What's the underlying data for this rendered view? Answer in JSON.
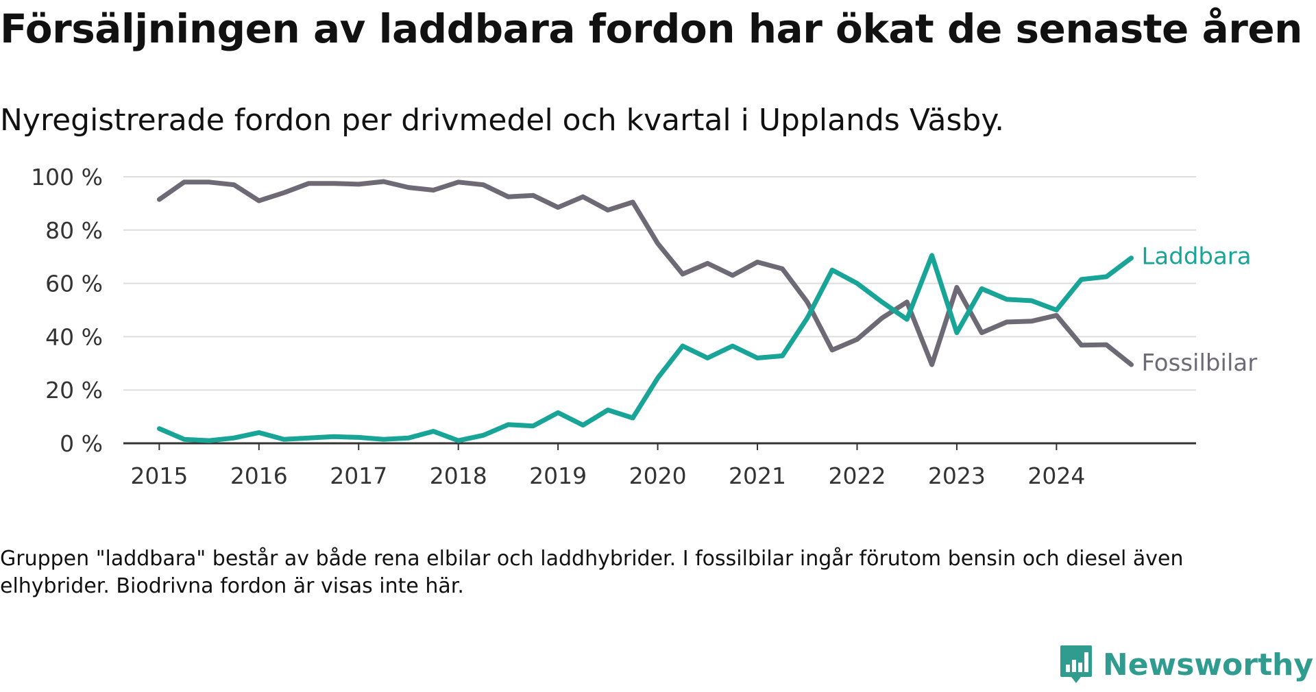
{
  "title": "Försäljningen av laddbara fordon har ökat de senaste åren",
  "subtitle": "Nyregistrerade fordon per drivmedel och kvartal i Upplands Väsby.",
  "note": "Gruppen \"laddbara\" består av både rena elbilar och laddhybrider. I fossilbilar ingår förutom bensin och diesel även elhybrider. Biodrivna fordon är visas inte här.",
  "brand": {
    "name": "Newsworthy",
    "icon": "newsworthy-logo-icon"
  },
  "colors": {
    "laddbara": "#18a597",
    "fossil": "#6d6a75",
    "grid": "#dddddd",
    "axis": "#333333",
    "text": "#333333"
  },
  "chart_data": {
    "type": "line",
    "title": "Försäljningen av laddbara fordon har ökat de senaste åren",
    "subtitle": "Nyregistrerade fordon per drivmedel och kvartal i Upplands Väsby.",
    "xlabel": "",
    "ylabel": "",
    "x": [
      2015.0,
      2015.25,
      2015.5,
      2015.75,
      2016.0,
      2016.25,
      2016.5,
      2016.75,
      2017.0,
      2017.25,
      2017.5,
      2017.75,
      2018.0,
      2018.25,
      2018.5,
      2018.75,
      2019.0,
      2019.25,
      2019.5,
      2019.75,
      2020.0,
      2020.25,
      2020.5,
      2020.75,
      2021.0,
      2021.25,
      2021.5,
      2021.75,
      2022.0,
      2022.25,
      2022.5,
      2022.75,
      2023.0,
      2023.25,
      2023.5,
      2023.75,
      2024.0,
      2024.25,
      2024.5,
      2024.75
    ],
    "xlim": [
      2014.64,
      2025.4
    ],
    "x_ticks": [
      2015,
      2016,
      2017,
      2018,
      2019,
      2020,
      2021,
      2022,
      2023,
      2024
    ],
    "x_tick_labels": [
      "2015",
      "2016",
      "2017",
      "2018",
      "2019",
      "2020",
      "2021",
      "2022",
      "2023",
      "2024"
    ],
    "ylim": [
      0,
      100
    ],
    "y_ticks": [
      0,
      20,
      40,
      60,
      80,
      100
    ],
    "y_tick_labels": [
      "0 %",
      "20 %",
      "40 %",
      "60 %",
      "80 %",
      "100 %"
    ],
    "grid": true,
    "series": [
      {
        "name": "Laddbara",
        "color": "#18a597",
        "values": [
          5.5,
          1.5,
          1.0,
          2.0,
          4.0,
          1.5,
          2.0,
          2.5,
          2.2,
          1.5,
          2.0,
          4.5,
          1.0,
          3.0,
          7.0,
          6.5,
          11.5,
          6.8,
          12.5,
          9.5,
          24.5,
          36.5,
          32.0,
          36.5,
          32.0,
          32.8,
          47.0,
          65.0,
          60.0,
          53.0,
          46.5,
          70.5,
          41.5,
          58.0,
          54.0,
          53.5,
          50.0,
          61.5,
          62.5,
          69.5
        ]
      },
      {
        "name": "Fossilbilar",
        "color": "#6d6a75",
        "values": [
          91.5,
          98.0,
          98.0,
          97.0,
          91.0,
          94.0,
          97.5,
          97.5,
          97.2,
          98.2,
          96.0,
          95.0,
          98.0,
          97.0,
          92.5,
          93.0,
          88.5,
          92.5,
          87.5,
          90.5,
          75.0,
          63.5,
          67.5,
          63.0,
          68.0,
          65.5,
          53.0,
          35.0,
          39.0,
          47.0,
          53.0,
          29.5,
          58.5,
          41.5,
          45.5,
          45.8,
          48.0,
          36.8,
          37.0,
          29.5
        ]
      }
    ],
    "series_labels": [
      "Laddbara",
      "Fossilbilar"
    ]
  }
}
